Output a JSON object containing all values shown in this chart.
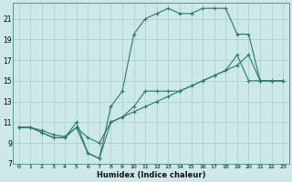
{
  "xlabel": "Humidex (Indice chaleur)",
  "bg_color": "#cce8e8",
  "grid_color": "#b0d0d0",
  "line_color": "#2a7a6a",
  "xlim": [
    -0.5,
    23.5
  ],
  "ylim": [
    7,
    22.5
  ],
  "xticks": [
    0,
    1,
    2,
    3,
    4,
    5,
    6,
    7,
    8,
    9,
    10,
    11,
    12,
    13,
    14,
    15,
    16,
    17,
    18,
    19,
    20,
    21,
    22,
    23
  ],
  "yticks": [
    7,
    9,
    11,
    13,
    15,
    17,
    19,
    21
  ],
  "line1_x": [
    0,
    1,
    2,
    3,
    4,
    5,
    6,
    7,
    8,
    9,
    10,
    11,
    12,
    13,
    14,
    15,
    16,
    17,
    18,
    19,
    20,
    21,
    22,
    23
  ],
  "line1_y": [
    10.5,
    10.5,
    10.0,
    9.5,
    9.5,
    11.0,
    8.0,
    7.5,
    11.0,
    11.5,
    12.5,
    14.0,
    14.0,
    14.0,
    14.0,
    14.5,
    15.0,
    15.5,
    16.0,
    17.5,
    15.0,
    15.0,
    15.0,
    15.0
  ],
  "line2_x": [
    0,
    1,
    2,
    3,
    4,
    5,
    6,
    7,
    8,
    9,
    10,
    11,
    12,
    13,
    14,
    15,
    16,
    17,
    18,
    19,
    20,
    21,
    22,
    23
  ],
  "line2_y": [
    10.5,
    10.5,
    10.0,
    9.5,
    9.5,
    10.5,
    8.0,
    7.5,
    12.5,
    14.0,
    19.5,
    21.0,
    21.5,
    22.0,
    21.5,
    21.5,
    22.0,
    22.0,
    22.0,
    19.5,
    19.5,
    15.0,
    15.0,
    15.0
  ],
  "line3_x": [
    0,
    1,
    2,
    3,
    4,
    5,
    6,
    7,
    8,
    9,
    10,
    11,
    12,
    13,
    14,
    15,
    16,
    17,
    18,
    19,
    20,
    21,
    22,
    23
  ],
  "line3_y": [
    10.5,
    10.5,
    10.2,
    9.8,
    9.6,
    10.5,
    9.5,
    9.0,
    11.0,
    11.5,
    12.0,
    12.5,
    13.0,
    13.5,
    14.0,
    14.5,
    15.0,
    15.5,
    16.0,
    16.5,
    17.5,
    15.0,
    15.0,
    15.0
  ]
}
